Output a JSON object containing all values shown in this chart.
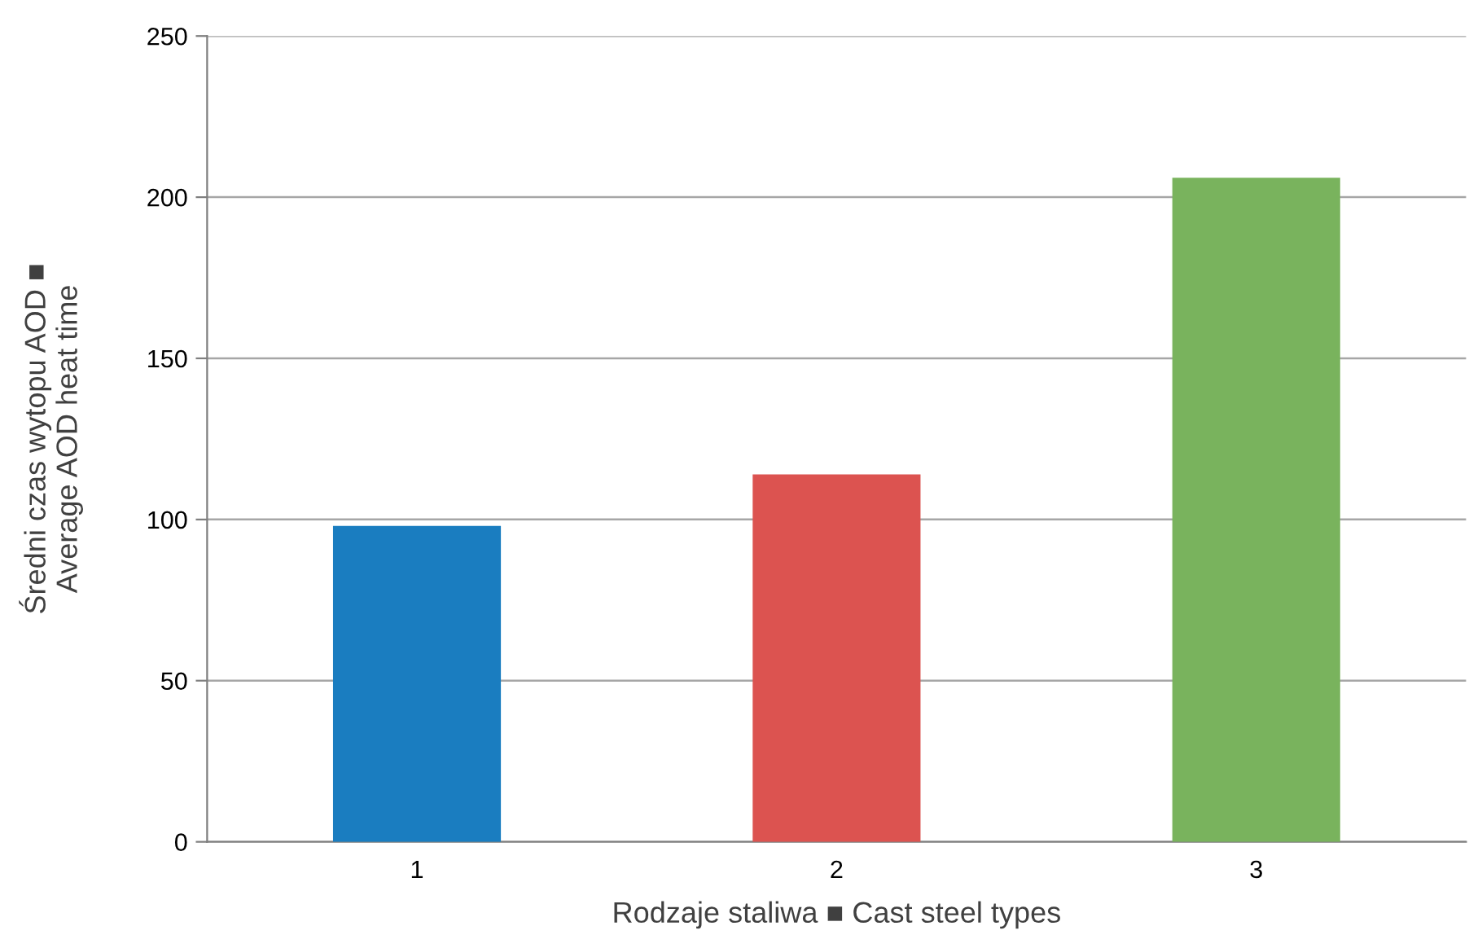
{
  "chart_data": {
    "type": "bar",
    "categories": [
      "1",
      "2",
      "3"
    ],
    "values": [
      98,
      114,
      206
    ],
    "colors": [
      "#1a7dc0",
      "#dc5350",
      "#79b35d"
    ],
    "xlabel": "Rodzaje staliwa ■ Cast steel types",
    "ylabel": "Średni czas wytopu AOD ■\nAverage AOD heat time",
    "ylim": [
      0,
      250
    ],
    "yticks": [
      0,
      50,
      100,
      150,
      200,
      250
    ],
    "grid": "y",
    "legend": false
  }
}
